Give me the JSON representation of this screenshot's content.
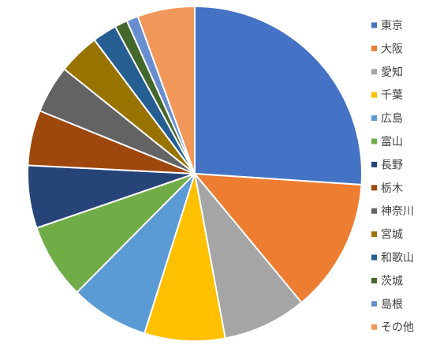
{
  "chart_data": {
    "type": "pie",
    "title": "",
    "legend_position": "right",
    "categories": [
      "東京",
      "大阪",
      "愛知",
      "千葉",
      "広島",
      "富山",
      "長野",
      "栃木",
      "神奈川",
      "宮城",
      "和歌山",
      "茨城",
      "島根",
      "その他"
    ],
    "values": [
      25.4,
      12.6,
      7.9,
      7.6,
      7.4,
      7.1,
      5.9,
      5.2,
      4.5,
      3.9,
      2.3,
      1.2,
      1.1,
      5.4
    ],
    "colors": [
      "#4472C4",
      "#ED7D31",
      "#A5A5A5",
      "#FFC000",
      "#5B9BD5",
      "#70AD47",
      "#264478",
      "#9E480E",
      "#636363",
      "#997300",
      "#255E91",
      "#43682B",
      "#698ED0",
      "#F1975A"
    ]
  }
}
